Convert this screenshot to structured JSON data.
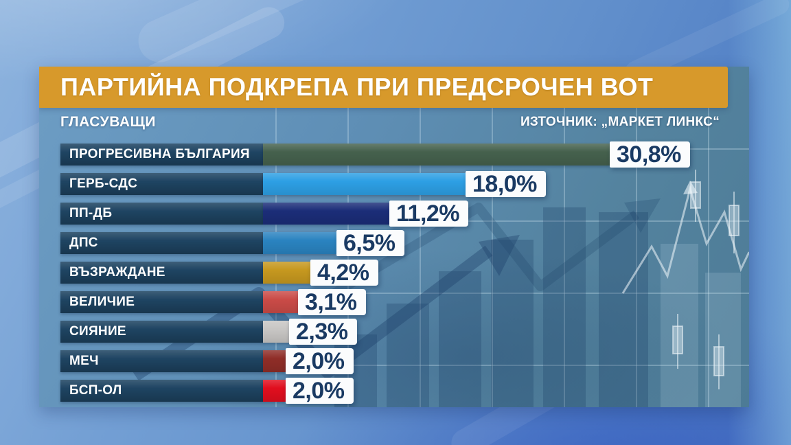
{
  "header": {
    "title": "ПАРТИЙНА ПОДКРЕПА ПРИ ПРЕДСРОЧЕН ВОТ",
    "group_label": "ГЛАСУВАЩИ",
    "source": "ИЗТОЧНИК: „МАРКЕТ ЛИНКС“"
  },
  "colors": {
    "banner": "#d7992b",
    "label_strip": "#1e4462",
    "value_text": "#1a3a63",
    "value_box_bg": "#fbfcfd",
    "text": "#ffffff"
  },
  "chart_data": {
    "type": "bar",
    "orientation": "horizontal",
    "title": "ПАРТИЙНА ПОДКРЕПА ПРИ ПРЕДСРОЧЕН ВОТ",
    "group_label": "ГЛАСУВАЩИ",
    "source": "ИЗТОЧНИК: „МАРКЕТ ЛИНКС“",
    "unit": "%",
    "xlim": [
      0,
      33
    ],
    "grid": false,
    "categories": [
      "ПРОГРЕСИВНА БЪЛГАРИЯ",
      "ГЕРБ-СДС",
      "ПП-ДБ",
      "ДПС",
      "ВЪЗРАЖДАНЕ",
      "ВЕЛИЧИЕ",
      "СИЯНИЕ",
      "МЕЧ",
      "БСП-ОЛ"
    ],
    "values": [
      30.8,
      18.0,
      11.2,
      6.5,
      4.2,
      3.1,
      2.3,
      2.0,
      2.0
    ],
    "value_labels": [
      "30,8%",
      "18,0%",
      "11,2%",
      "6,5%",
      "4,2%",
      "3,1%",
      "2,3%",
      "2,0%",
      "2,0%"
    ],
    "bar_colors": [
      "#45614d",
      "#2d9fe4",
      "#1b2d78",
      "#2a83c0",
      "#c6981f",
      "#ca4b47",
      "#c8c6c4",
      "#8f2d27",
      "#e10e1e"
    ]
  }
}
